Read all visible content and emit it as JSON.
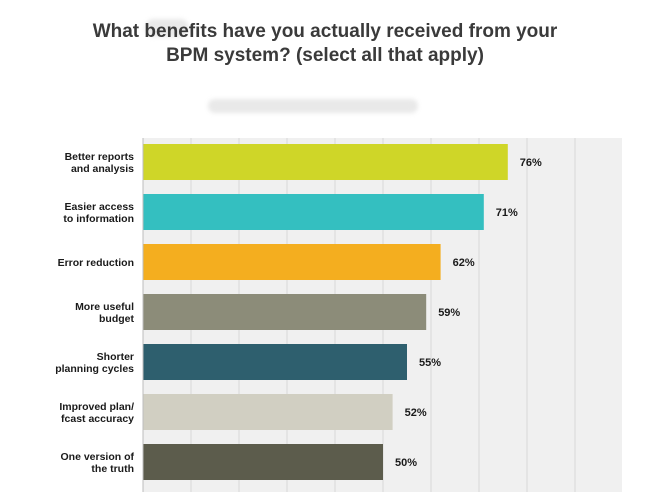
{
  "chart_data": {
    "type": "bar",
    "orientation": "horizontal",
    "title": "What benefits have you actually received from your BPM system? (select all that apply)",
    "categories": [
      [
        "Better reports",
        "and analysis"
      ],
      [
        "Easier access",
        "to information"
      ],
      [
        "Error reduction"
      ],
      [
        "More useful",
        "budget"
      ],
      [
        "Shorter",
        "planning cycles"
      ],
      [
        "Improved plan/",
        "fcast accuracy"
      ],
      [
        "One version of",
        "the truth"
      ]
    ],
    "values": [
      76,
      71,
      62,
      59,
      55,
      52,
      50
    ],
    "value_labels": [
      "76%",
      "71%",
      "62%",
      "59%",
      "55%",
      "52%",
      "50%"
    ],
    "colors": [
      "#cfd628",
      "#34bfc0",
      "#f4ae1f",
      "#8c8c79",
      "#2e5f6e",
      "#d1cfc2",
      "#5c5c4c"
    ],
    "xlim": [
      0,
      100
    ],
    "grid": true,
    "legend": "none"
  }
}
